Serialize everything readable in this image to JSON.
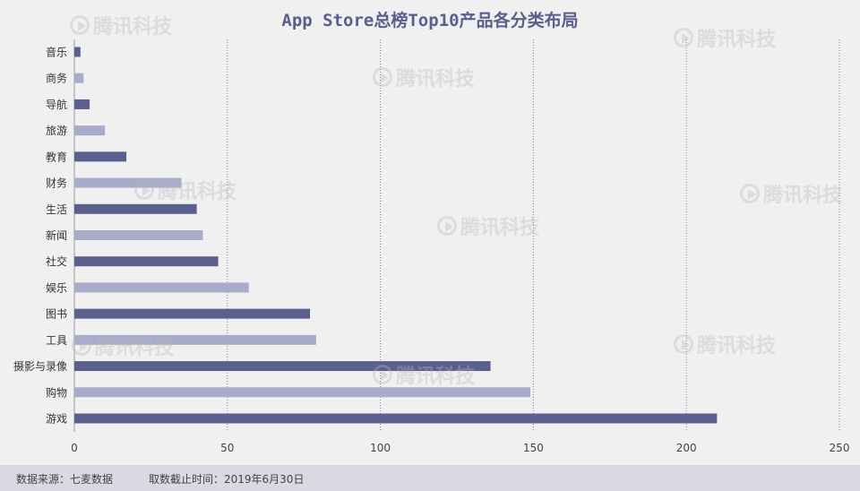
{
  "title": "App Store总榜Top10产品各分类布局",
  "footer": {
    "source": "数据来源：七麦数据",
    "date": "取数截止时间：2019年6月30日"
  },
  "watermark_text": "腾讯科技",
  "colors": {
    "dark_bar": "#5b5f8e",
    "light_bar": "#a9abca",
    "title": "#5a5e8f",
    "grid": "#7b7fa6",
    "footer_bg": "#d9d9e1"
  },
  "chart_data": {
    "type": "bar",
    "orientation": "horizontal",
    "title": "App Store总榜Top10产品各分类布局",
    "categories": [
      "音乐",
      "商务",
      "导航",
      "旅游",
      "教育",
      "财务",
      "生活",
      "新闻",
      "社交",
      "娱乐",
      "图书",
      "工具",
      "摄影与录像",
      "购物",
      "游戏"
    ],
    "values": [
      2,
      3,
      5,
      10,
      17,
      35,
      40,
      42,
      47,
      57,
      77,
      79,
      136,
      149,
      210
    ],
    "bar_shades": [
      "dark",
      "light",
      "dark",
      "light",
      "dark",
      "light",
      "dark",
      "light",
      "dark",
      "light",
      "dark",
      "light",
      "dark",
      "light",
      "dark"
    ],
    "xlim": [
      0,
      250
    ],
    "xticks": [
      "0",
      "50",
      "100",
      "150",
      "200",
      "250"
    ],
    "xtick_values": [
      0,
      50,
      100,
      150,
      200,
      250
    ],
    "grid": "vertical dotted",
    "legend": "none"
  }
}
